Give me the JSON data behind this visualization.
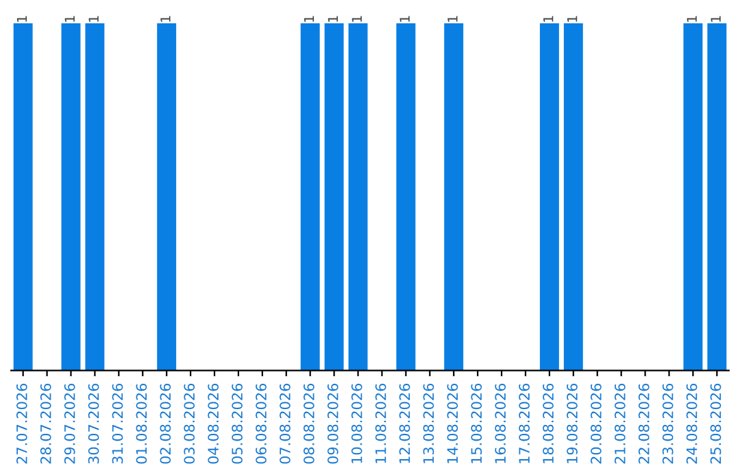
{
  "chart_data": {
    "type": "bar",
    "ylim": [
      0,
      1
    ],
    "tick_labels": "x",
    "color": "#0a7fe3",
    "categories": [
      "27.07.2026",
      "28.07.2026",
      "29.07.2026",
      "30.07.2026",
      "31.07.2026",
      "01.08.2026",
      "02.08.2026",
      "03.08.2026",
      "04.08.2026",
      "05.08.2026",
      "06.08.2026",
      "07.08.2026",
      "08.08.2026",
      "09.08.2026",
      "10.08.2026",
      "11.08.2026",
      "12.08.2026",
      "13.08.2026",
      "14.08.2026",
      "15.08.2026",
      "16.08.2026",
      "17.08.2026",
      "18.08.2026",
      "19.08.2026",
      "20.08.2026",
      "21.08.2026",
      "22.08.2026",
      "23.08.2026",
      "24.08.2026",
      "25.08.2026"
    ],
    "values": [
      1,
      0,
      1,
      1,
      0,
      0,
      1,
      0,
      0,
      0,
      0,
      0,
      1,
      1,
      1,
      0,
      1,
      0,
      1,
      0,
      0,
      0,
      1,
      1,
      0,
      0,
      0,
      0,
      1,
      1
    ],
    "value_labels": [
      "1",
      null,
      "1",
      "1",
      null,
      null,
      "1",
      null,
      null,
      null,
      null,
      null,
      "1",
      "1",
      "1",
      null,
      "1",
      null,
      "1",
      null,
      null,
      null,
      "1",
      "1",
      null,
      null,
      null,
      null,
      "1",
      "1"
    ],
    "grid": false,
    "legend": false
  }
}
